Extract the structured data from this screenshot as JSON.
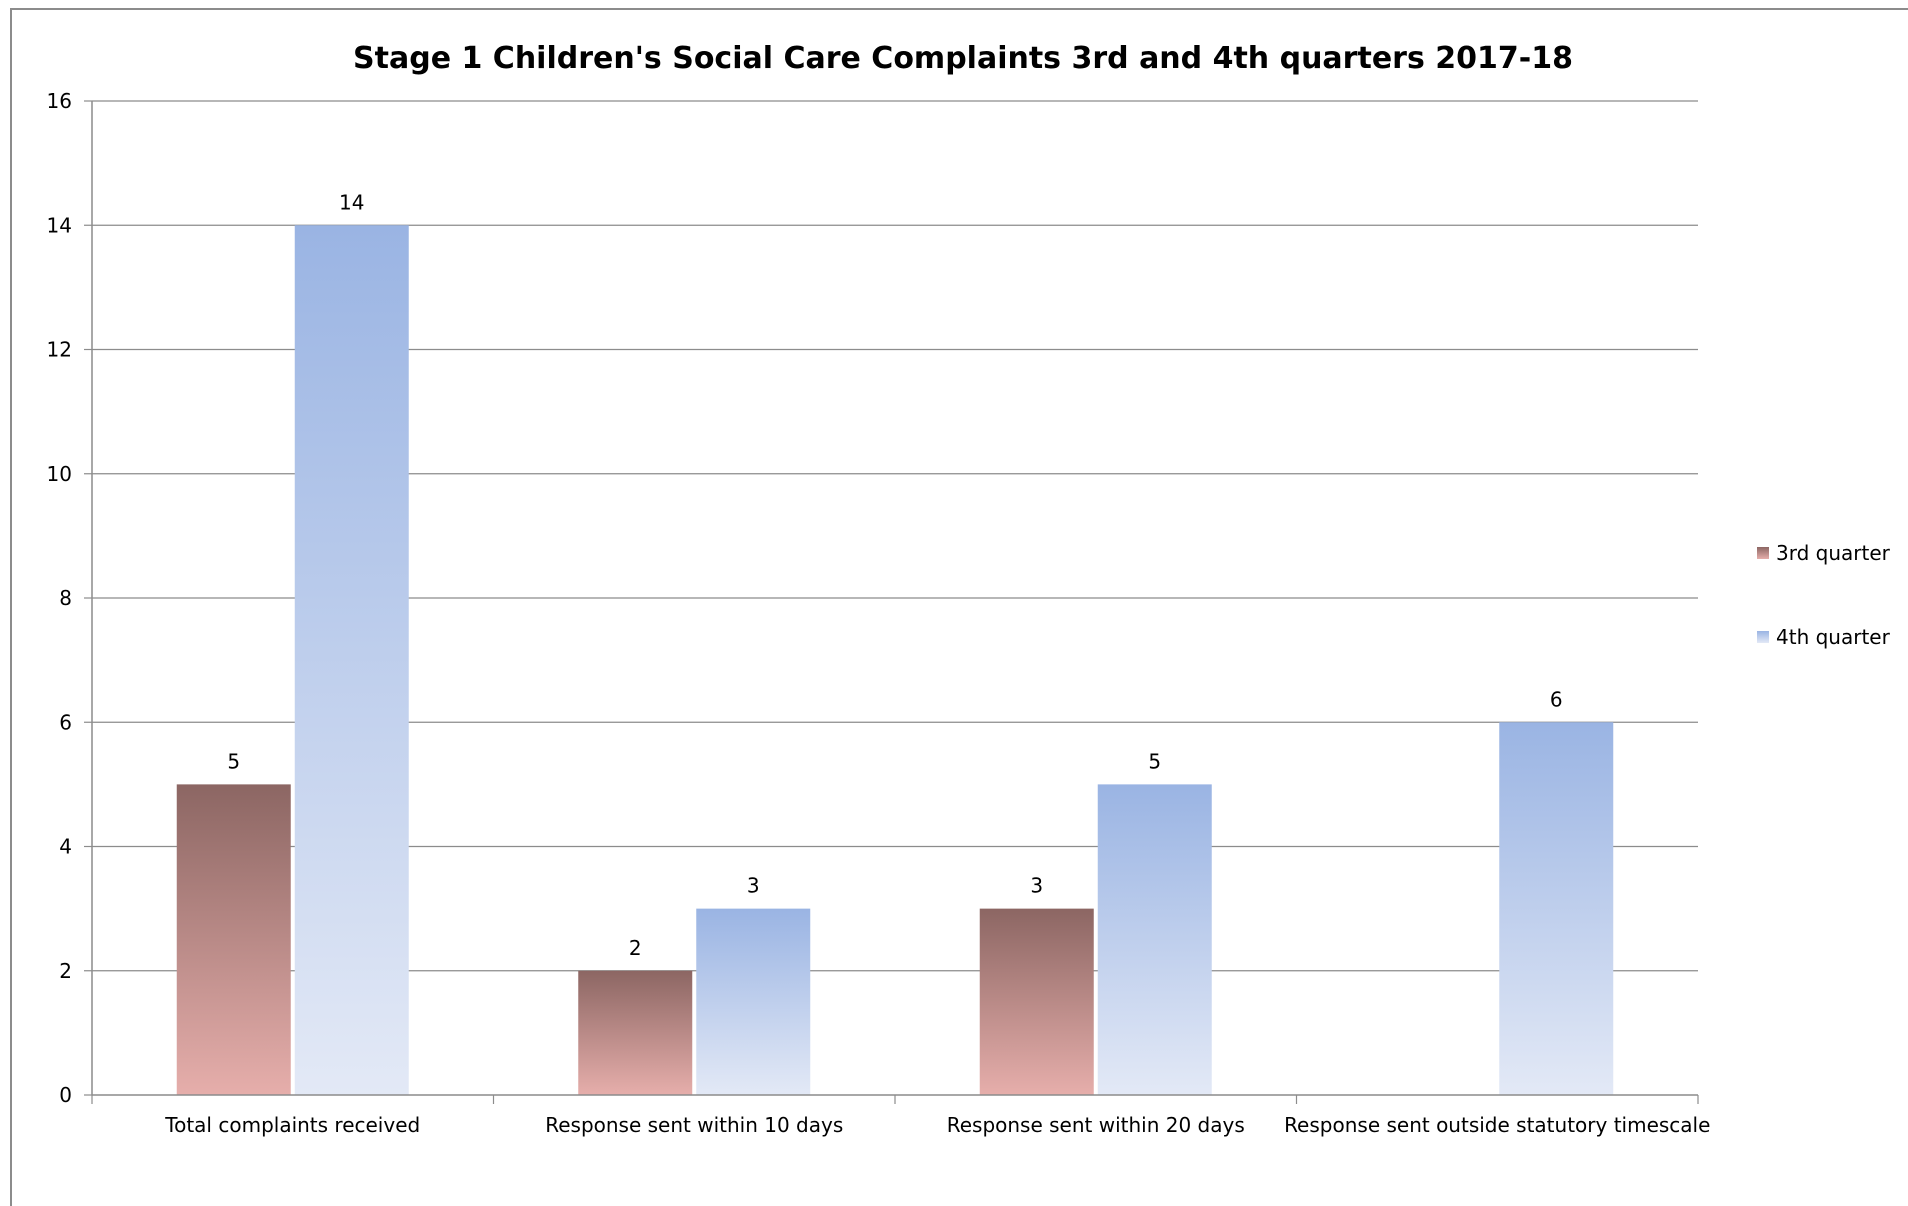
{
  "chart_data": {
    "type": "bar",
    "title": "Stage 1 Children's Social Care Complaints 3rd and 4th quarters 2017-18",
    "xlabel": "",
    "ylabel": "",
    "ylim": [
      0,
      16
    ],
    "yticks": [
      0,
      2,
      4,
      6,
      8,
      10,
      12,
      14,
      16
    ],
    "grid": true,
    "legend_position": "right",
    "categories": [
      "Total complaints received",
      "Response sent within 10 days",
      "Response sent within 20 days",
      "Response sent outside statutory timescale"
    ],
    "series": [
      {
        "name": "3rd quarter",
        "values": [
          5,
          2,
          3,
          null
        ],
        "color_top": "#8c6663",
        "color_bottom": "#e6aeab"
      },
      {
        "name": "4th quarter",
        "values": [
          14,
          3,
          5,
          6
        ],
        "color_top": "#9ab4e3",
        "color_bottom": "#e3e9f6"
      }
    ]
  }
}
